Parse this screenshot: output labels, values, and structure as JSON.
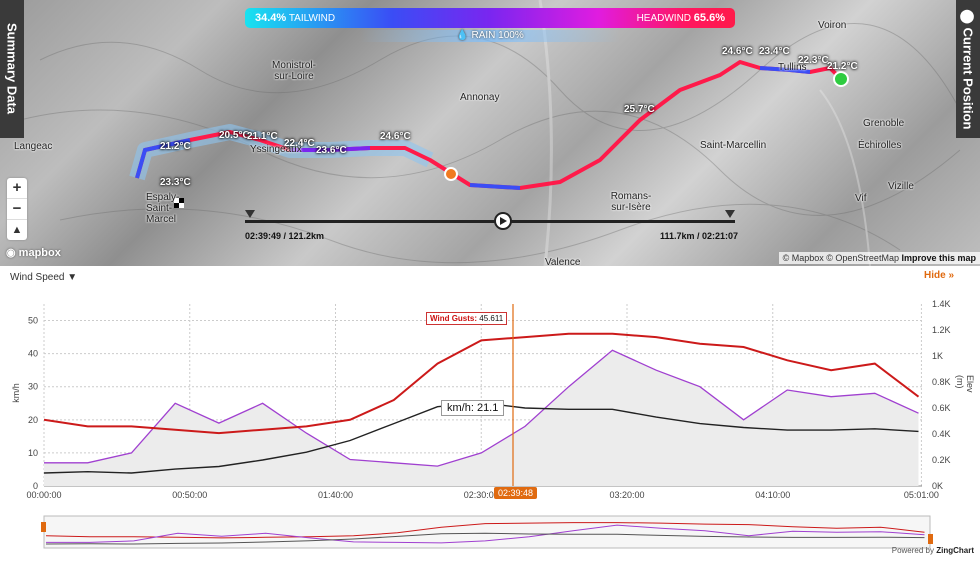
{
  "map": {
    "wind_summary": {
      "tailwind_pct": "34.4%",
      "tailwind_label": "TAILWIND",
      "headwind_label": "HEADWIND",
      "headwind_pct": "65.6%"
    },
    "rain_label": "RAIN 100%",
    "summary_tab": "Summary Data",
    "current_position_tab": "Current Position",
    "places": [
      "Voiron",
      "Monistrol-sur-Loire",
      "Annonay",
      "Tullins",
      "Grenoble",
      "Échirolles",
      "Vizille",
      "Vif",
      "Saint-Marcellin",
      "Romans-sur-Isère",
      "Yssingeaux",
      "Langeac",
      "Espaly-Saint-Marcel",
      "Valence"
    ],
    "temps": [
      "24.6°C",
      "23.4°C",
      "22.3°C",
      "21.2°C",
      "25.7°C",
      "21.2°C",
      "20.5°C",
      "21.1°C",
      "22.4°C",
      "23.6°C",
      "24.6°C",
      "23.3°C"
    ],
    "zoom_in": "+",
    "zoom_out": "−",
    "mapbox_logo": "mapbox",
    "attribution_mapbox": "© Mapbox",
    "attribution_osm": "© OpenStreetMap",
    "attribution_improve": "Improve this map",
    "scrub_left": "02:39:49 / 121.2km",
    "scrub_right": "111.7km / 02:21:07",
    "play_icon": "play-icon",
    "colors": {
      "route_red": "#ff1a4a",
      "route_blue": "#3a4df5",
      "current_marker": "#f07a20",
      "start_marker": "#2ecc40"
    }
  },
  "chart": {
    "metric_selector": "Wind Speed",
    "hide_label": "Hide",
    "y_left_label": "km/h",
    "y_right_label": "Elev (m)",
    "y_left_ticks": [
      "0",
      "10",
      "20",
      "30",
      "40",
      "50"
    ],
    "y_right_ticks": [
      "0K",
      "0.2K",
      "0.4K",
      "0.6K",
      "0.8K",
      "1K",
      "1.2K",
      "1.4K"
    ],
    "x_ticks": [
      "00:00:00",
      "00:50:00",
      "01:40:00",
      "02:30:00",
      "03:20:00",
      "04:10:00",
      "05:01:00"
    ],
    "cursor_time": "02:39:48",
    "tooltip": "km/h: 21.1",
    "gusts_label": "Wind Gusts:",
    "gusts_value": "45.611",
    "powered_by": "Powered by",
    "powered_brand": "ZingChart"
  },
  "chart_data": {
    "type": "line",
    "x_unit": "elapsed time (h:mm)",
    "x": [
      0,
      0.25,
      0.5,
      0.75,
      1.0,
      1.25,
      1.5,
      1.75,
      2.0,
      2.25,
      2.5,
      2.75,
      3.0,
      3.25,
      3.5,
      3.75,
      4.0,
      4.25,
      4.5,
      4.75,
      5.0
    ],
    "xlim": [
      0,
      5.02
    ],
    "ylim": [
      0,
      55
    ],
    "y2lim": [
      0,
      1400
    ],
    "series": [
      {
        "name": "Wind Gusts",
        "axis": "left",
        "values": [
          20,
          18,
          18,
          17,
          16,
          17,
          18,
          20,
          26,
          37,
          44,
          45,
          46,
          46,
          45,
          43,
          42,
          38,
          35,
          37,
          27
        ]
      },
      {
        "name": "",
        "axis": "left",
        "values": [
          7,
          7,
          10,
          25,
          19,
          25,
          16,
          8,
          7,
          6,
          10,
          18,
          30,
          41,
          35,
          30,
          20,
          29,
          27,
          28,
          22
        ]
      },
      {
        "name": "",
        "axis": "right",
        "values": [
          100,
          110,
          100,
          130,
          150,
          200,
          260,
          350,
          480,
          610,
          640,
          600,
          590,
          590,
          530,
          480,
          450,
          430,
          430,
          440,
          420
        ]
      }
    ]
  }
}
